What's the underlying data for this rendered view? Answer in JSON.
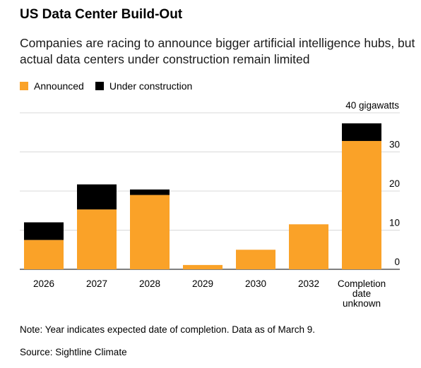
{
  "colors": {
    "announced": "#FAA228",
    "under_construction": "#000000",
    "grid": "#d9d9d9"
  },
  "chart_data": {
    "type": "bar",
    "stacked": true,
    "title": "US Data Center Build-Out",
    "subtitle": "Companies are racing to announce bigger artificial intelligence hubs, but actual data centers under construction remain limited",
    "categories": [
      "2026",
      "2027",
      "2028",
      "2029",
      "2030",
      "2032",
      "Completion date unknown"
    ],
    "category_lines": [
      [
        "2026"
      ],
      [
        "2027"
      ],
      [
        "2028"
      ],
      [
        "2029"
      ],
      [
        "2030"
      ],
      [
        "2032"
      ],
      [
        "Completion",
        "date",
        "unknown"
      ]
    ],
    "series": [
      {
        "name": "Announced",
        "values": [
          7.5,
          15.3,
          19.0,
          1.1,
          5.0,
          11.5,
          32.8
        ]
      },
      {
        "name": "Under construction",
        "values": [
          4.5,
          6.4,
          1.4,
          0,
          0,
          0,
          4.5
        ]
      }
    ],
    "ylim": [
      0,
      40
    ],
    "yticks": [
      "0",
      "10",
      "20",
      "30"
    ],
    "unit_label": "40 gigawatts",
    "grid": true,
    "legend": "top-left",
    "note": "Note: Year indicates expected date of completion. Data as of March 9.",
    "source": "Source: Sightline Climate"
  }
}
